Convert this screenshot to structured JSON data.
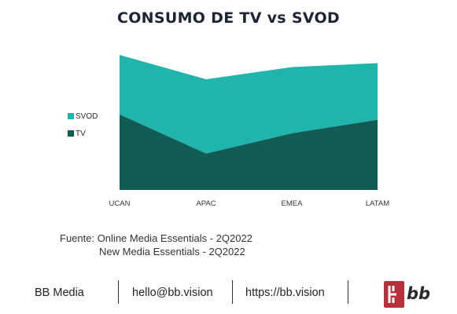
{
  "chart_data": {
    "type": "area",
    "stacked": true,
    "title": "CONSUMO DE TV vs SVOD",
    "categories": [
      "UCAN",
      "APAC",
      "EMEA",
      "LATAM"
    ],
    "series": [
      {
        "name": "TV",
        "color": "#115d56",
        "values": [
          56,
          27,
          42,
          52
        ]
      },
      {
        "name": "SVOD",
        "color": "#1fb5ad",
        "values": [
          44,
          55,
          49,
          42
        ]
      }
    ],
    "ylim": [
      0,
      100
    ],
    "grid": false,
    "legend_position": "left"
  },
  "source": {
    "line1": "Fuente: Online Media Essentials - 2Q2022",
    "line2": "New Media Essentials - 2Q2022"
  },
  "footer": {
    "brand": "BB Media",
    "email": "hello@bb.vision",
    "url": "https://bb.vision",
    "logo_text": "bb",
    "logo_color": "#b8303c"
  }
}
